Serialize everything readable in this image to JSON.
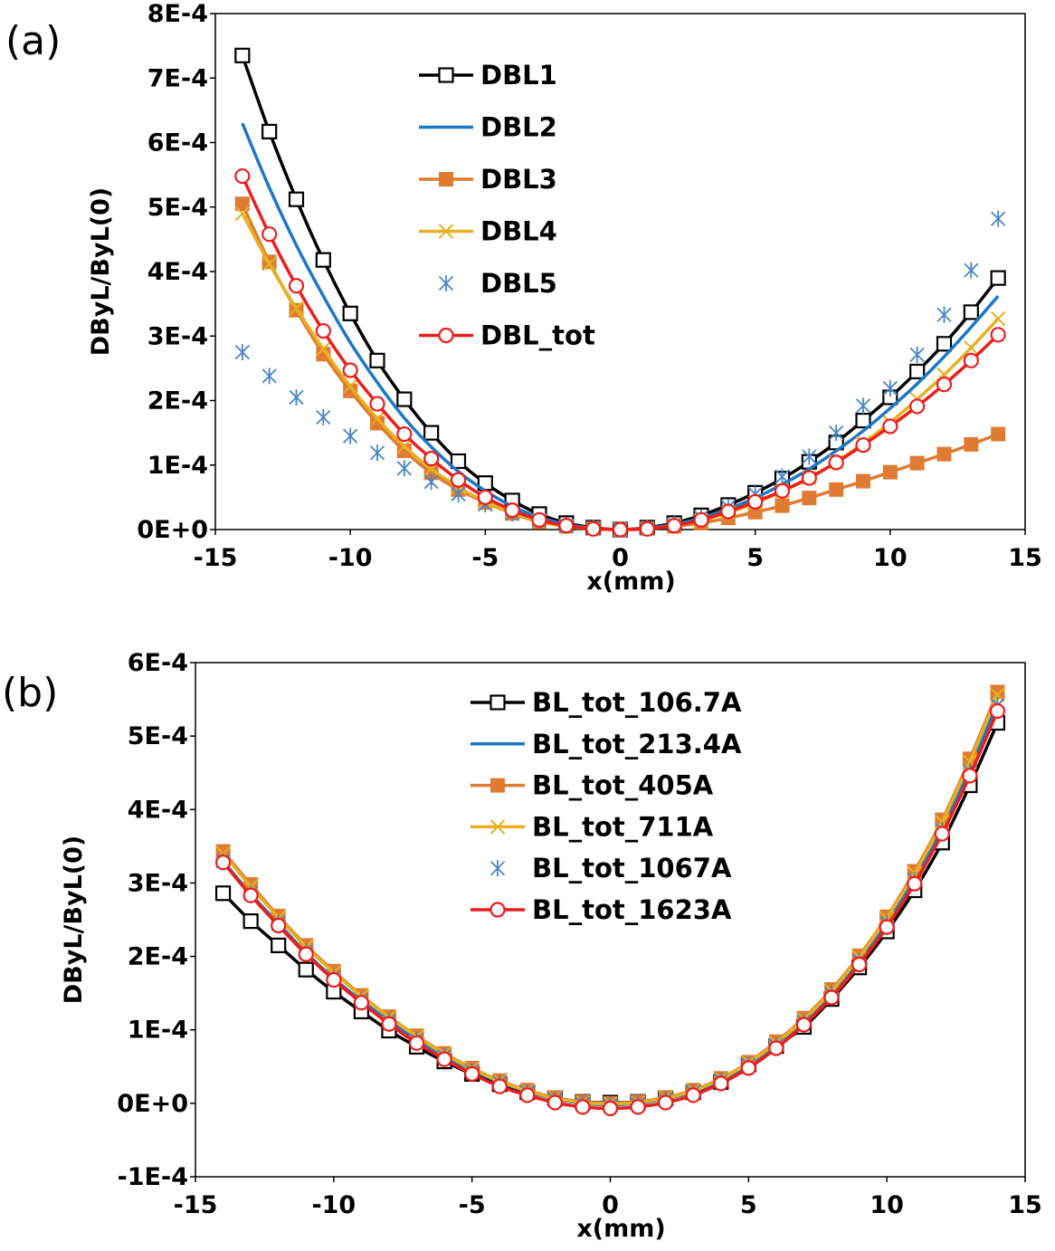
{
  "chart_data": [
    {
      "type": "line",
      "panel_label": "(a)",
      "xlabel": "x(mm)",
      "ylabel": "DByL/ByL(0)",
      "xlim": [
        -15,
        15
      ],
      "ylim": [
        0,
        0.0008
      ],
      "xticks": [
        -15,
        -10,
        -5,
        0,
        5,
        10,
        15
      ],
      "xtick_labels": [
        "-15",
        "-10",
        "-5",
        "0",
        "5",
        "10",
        "15"
      ],
      "yticks": [
        0,
        0.0001,
        0.0002,
        0.0003,
        0.0004,
        0.0005,
        0.0006,
        0.0007,
        0.0008
      ],
      "ytick_labels": [
        "0E+0",
        "1E-4",
        "2E-4",
        "3E-4",
        "4E-4",
        "5E-4",
        "6E-4",
        "7E-4",
        "8E-4"
      ],
      "grid": false,
      "legend_position": "top-center",
      "x": [
        -14,
        -13,
        -12,
        -11,
        -10,
        -9,
        -8,
        -7,
        -6,
        -5,
        -4,
        -3,
        -2,
        -1,
        0,
        1,
        2,
        3,
        4,
        5,
        6,
        7,
        8,
        9,
        10,
        11,
        12,
        13,
        14
      ],
      "series": [
        {
          "name": "DBL1",
          "color": "#000000",
          "marker": "square-open",
          "line": true,
          "values": [
            0.000735,
            0.000617,
            0.000512,
            0.000418,
            0.000335,
            0.000262,
            0.000202,
            0.00015,
            0.000106,
            7.2e-05,
            4.5e-05,
            2.4e-05,
            1e-05,
            3e-06,
            0.0,
            3e-06,
            1e-05,
            2.2e-05,
            3.8e-05,
            5.7e-05,
            7.9e-05,
            0.000105,
            0.000135,
            0.000169,
            0.000205,
            0.000245,
            0.000288,
            0.000337,
            0.00039
          ]
        },
        {
          "name": "DBL2",
          "color": "#1f77c4",
          "marker": "none",
          "line": true,
          "values": [
            0.00063,
            0.00053,
            0.000441,
            0.000362,
            0.00029,
            0.000228,
            0.000173,
            0.000128,
            9e-05,
            6e-05,
            3.6e-05,
            1.9e-05,
            8e-06,
            2e-06,
            0.0,
            2e-06,
            8e-06,
            1.8e-05,
            3.2e-05,
            4.9e-05,
            7e-05,
            9.4e-05,
            0.000122,
            0.000153,
            0.000188,
            0.000226,
            0.000268,
            0.000314,
            0.000362
          ]
        },
        {
          "name": "DBL3",
          "color": "#e07b33",
          "marker": "square-filled",
          "line": true,
          "values": [
            0.000505,
            0.000415,
            0.00034,
            0.000272,
            0.000215,
            0.000165,
            0.000122,
            8.8e-05,
            6.2e-05,
            4.2e-05,
            2.5e-05,
            1.2e-05,
            5e-06,
            2e-06,
            0.0,
            2e-06,
            5e-06,
            1e-05,
            1.8e-05,
            2.7e-05,
            3.7e-05,
            4.9e-05,
            6.2e-05,
            7.5e-05,
            8.9e-05,
            0.000103,
            0.000117,
            0.000132,
            0.000148
          ]
        },
        {
          "name": "DBL4",
          "color": "#e6b020",
          "marker": "x",
          "line": true,
          "values": [
            0.00049,
            0.000412,
            0.000343,
            0.00028,
            0.000222,
            0.000172,
            0.000129,
            9.4e-05,
            6.6e-05,
            4.3e-05,
            2.6e-05,
            1.3e-05,
            5e-06,
            1e-06,
            0.0,
            1e-06,
            6e-06,
            1.4e-05,
            2.6e-05,
            4.1e-05,
            5.9e-05,
            8e-05,
            0.000105,
            0.000134,
            0.000166,
            0.000202,
            0.00024,
            0.000282,
            0.000327
          ]
        },
        {
          "name": "DBL5",
          "color": "#4a86c5",
          "marker": "asterisk",
          "line": false,
          "values": [
            0.000275,
            0.000238,
            0.000205,
            0.000174,
            0.000145,
            0.000119,
            9.5e-05,
            7.4e-05,
            5.5e-05,
            3.9e-05,
            2.5e-05,
            1.4e-05,
            6e-06,
            2e-06,
            0.0,
            2e-06,
            8e-06,
            1.9e-05,
            3.5e-05,
            5.5e-05,
            8.2e-05,
            0.000113,
            0.00015,
            0.000192,
            0.000219,
            0.000271,
            0.000333,
            0.000402,
            0.000482
          ]
        },
        {
          "name": "DBL_tot",
          "color": "#ee1c1c",
          "marker": "circle-open",
          "line": true,
          "values": [
            0.000548,
            0.000458,
            0.000378,
            0.000308,
            0.000247,
            0.000195,
            0.000148,
            0.00011,
            7.7e-05,
            5e-05,
            3e-05,
            1.5e-05,
            6e-06,
            1e-06,
            0.0,
            1e-06,
            6e-06,
            1.5e-05,
            2.8e-05,
            4.3e-05,
            6e-05,
            8e-05,
            0.000104,
            0.000131,
            0.00016,
            0.000191,
            0.000225,
            0.000262,
            0.000302
          ]
        }
      ]
    },
    {
      "type": "line",
      "panel_label": "(b)",
      "xlabel": "x(mm)",
      "ylabel": "DByL/ByL(0)",
      "xlim": [
        -15,
        15
      ],
      "ylim": [
        -0.0001,
        0.0006
      ],
      "xticks": [
        -15,
        -10,
        -5,
        0,
        5,
        10,
        15
      ],
      "xtick_labels": [
        "-15",
        "-10",
        "-5",
        "0",
        "5",
        "10",
        "15"
      ],
      "yticks": [
        -0.0001,
        0,
        0.0001,
        0.0002,
        0.0003,
        0.0004,
        0.0005,
        0.0006
      ],
      "ytick_labels": [
        "-1E-4",
        "0E+0",
        "1E-4",
        "2E-4",
        "3E-4",
        "4E-4",
        "5E-4",
        "6E-4"
      ],
      "grid": false,
      "legend_position": "top-center",
      "x": [
        -14,
        -13,
        -12,
        -11,
        -10,
        -9,
        -8,
        -7,
        -6,
        -5,
        -4,
        -3,
        -2,
        -1,
        0,
        1,
        2,
        3,
        4,
        5,
        6,
        7,
        8,
        9,
        10,
        11,
        12,
        13,
        14
      ],
      "series": [
        {
          "name": "BL_tot_106.7A",
          "color": "#000000",
          "marker": "square-open",
          "line": true,
          "values": [
            0.000286,
            0.000248,
            0.000215,
            0.000182,
            0.000152,
            0.000125,
            9.9e-05,
            7.7e-05,
            5.7e-05,
            4e-05,
            2.6e-05,
            1.5e-05,
            7e-06,
            2e-06,
            1e-06,
            2e-06,
            7e-06,
            1.5e-05,
            2.9e-05,
            5.3e-05,
            7.8e-05,
            0.000104,
            0.000142,
            0.000185,
            0.000234,
            0.00029,
            0.000355,
            0.000433,
            0.000518
          ]
        },
        {
          "name": "BL_tot_213.4A",
          "color": "#1f77c4",
          "marker": "none",
          "line": true,
          "values": [
            0.00033,
            0.000285,
            0.000245,
            0.000205,
            0.00017,
            0.00014,
            0.000112,
            8.7e-05,
            6.4e-05,
            4.5e-05,
            2.9e-05,
            1.6e-05,
            6e-06,
            0.0,
            -2e-06,
            0.0,
            6e-06,
            1.6e-05,
            3.2e-05,
            5.3e-05,
            8e-05,
            0.000112,
            0.000149,
            0.000195,
            0.000246,
            0.000305,
            0.000373,
            0.000455,
            0.000545
          ]
        },
        {
          "name": "BL_tot_405A",
          "color": "#e07b33",
          "marker": "square-filled",
          "line": true,
          "values": [
            0.000343,
            0.000298,
            0.000255,
            0.000215,
            0.00018,
            0.000147,
            0.000118,
            9.2e-05,
            6.8e-05,
            4.8e-05,
            3.1e-05,
            1.8e-05,
            8e-06,
            2e-06,
            0.0,
            2e-06,
            8e-06,
            1.8e-05,
            3.4e-05,
            5.6e-05,
            8.4e-05,
            0.000116,
            0.000155,
            0.000201,
            0.000254,
            0.000316,
            0.000386,
            0.000469,
            0.00056
          ]
        },
        {
          "name": "BL_tot_711A",
          "color": "#e6b020",
          "marker": "x",
          "line": true,
          "values": [
            0.00034,
            0.000295,
            0.000253,
            0.000213,
            0.000178,
            0.000146,
            0.000117,
            9.1e-05,
            6.7e-05,
            4.7e-05,
            3e-05,
            1.7e-05,
            7e-06,
            1e-06,
            -1e-06,
            1e-06,
            7e-06,
            1.7e-05,
            3.3e-05,
            5.5e-05,
            8.2e-05,
            0.000114,
            0.000153,
            0.000199,
            0.000252,
            0.000313,
            0.000383,
            0.000465,
            0.000556
          ]
        },
        {
          "name": "BL_tot_1067A",
          "color": "#4a86c5",
          "marker": "asterisk",
          "line": false,
          "values": [
            0.00033,
            0.000286,
            0.000245,
            0.000206,
            0.000171,
            0.00014,
            0.000112,
            8.6e-05,
            6.4e-05,
            4.4e-05,
            2.8e-05,
            1.5e-05,
            5e-06,
            -1e-06,
            -3e-06,
            -1e-06,
            5e-06,
            1.5e-05,
            3.1e-05,
            5.2e-05,
            7.9e-05,
            0.000111,
            0.000149,
            0.000194,
            0.000245,
            0.000304,
            0.000372,
            0.000452,
            0.000542
          ]
        },
        {
          "name": "BL_tot_1623A",
          "color": "#ee1c1c",
          "marker": "circle-open",
          "line": true,
          "values": [
            0.000328,
            0.000283,
            0.000242,
            0.000203,
            0.000168,
            0.000137,
            0.000108,
            8.2e-05,
            6e-05,
            4e-05,
            2.3e-05,
            1.1e-05,
            1e-06,
            -5e-06,
            -7e-06,
            -5e-06,
            1e-06,
            1.1e-05,
            2.7e-05,
            4.8e-05,
            7.5e-05,
            0.000107,
            0.000144,
            0.000189,
            0.00024,
            0.000299,
            0.000367,
            0.000446,
            0.000534
          ]
        }
      ]
    }
  ]
}
